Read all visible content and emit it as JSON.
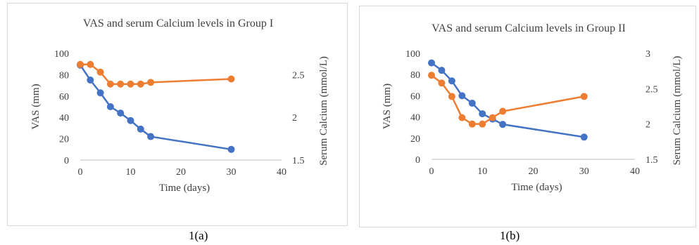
{
  "colors": {
    "vas": "#4472c4",
    "calcium": "#ed7d31",
    "axis": "#bfbfbf",
    "text": "#404040"
  },
  "captions": {
    "a": "1(a)",
    "b": "1(b)"
  },
  "chart_data": [
    {
      "type": "line",
      "title": "VAS and serum Calcium levels in Group I",
      "xlabel": "Time (days)",
      "ylabel": "VAS (mm)",
      "y2label": "Serum Calcium (mmol/L)",
      "xlim": [
        0,
        40
      ],
      "xticks": [
        "0",
        "10",
        "20",
        "30",
        "40"
      ],
      "ylim": [
        0,
        100
      ],
      "yticks": [
        "0",
        "20",
        "40",
        "60",
        "80",
        "100"
      ],
      "y2lim": [
        1.5,
        2.75
      ],
      "y2ticks": [
        "1.5",
        "2",
        "2.5"
      ],
      "grid": false,
      "series": [
        {
          "axis": "left",
          "x": [
            0,
            2,
            4,
            6,
            8,
            10,
            12,
            14,
            30
          ],
          "values": [
            89,
            75,
            63,
            50,
            44,
            37,
            29,
            22,
            10
          ]
        },
        {
          "axis": "right",
          "x": [
            0,
            2,
            4,
            6,
            8,
            10,
            12,
            14,
            30
          ],
          "values": [
            2.62,
            2.62,
            2.53,
            2.39,
            2.39,
            2.39,
            2.39,
            2.41,
            2.45
          ]
        }
      ]
    },
    {
      "type": "line",
      "title": "VAS and serum Calcium levels in Group II",
      "xlabel": "Time (days)",
      "ylabel": "VAS (mm)",
      "y2label": "Serum Calcium (mmol/L)",
      "xlim": [
        0,
        40
      ],
      "xticks": [
        "0",
        "10",
        "20",
        "30",
        "40"
      ],
      "ylim": [
        0,
        100
      ],
      "yticks": [
        "0",
        "20",
        "40",
        "60",
        "80",
        "100"
      ],
      "y2lim": [
        1.5,
        3
      ],
      "y2ticks": [
        "1.5",
        "2",
        "2.5",
        "3"
      ],
      "grid": false,
      "series": [
        {
          "axis": "left",
          "x": [
            0,
            2,
            4,
            6,
            8,
            10,
            12,
            14,
            30
          ],
          "values": [
            91,
            84,
            74,
            60,
            53,
            43,
            38,
            33,
            21
          ]
        },
        {
          "axis": "right",
          "x": [
            0,
            2,
            4,
            6,
            8,
            10,
            12,
            14,
            30
          ],
          "values": [
            2.69,
            2.58,
            2.39,
            2.09,
            2.0,
            2.0,
            2.09,
            2.18,
            2.39
          ]
        }
      ]
    }
  ]
}
